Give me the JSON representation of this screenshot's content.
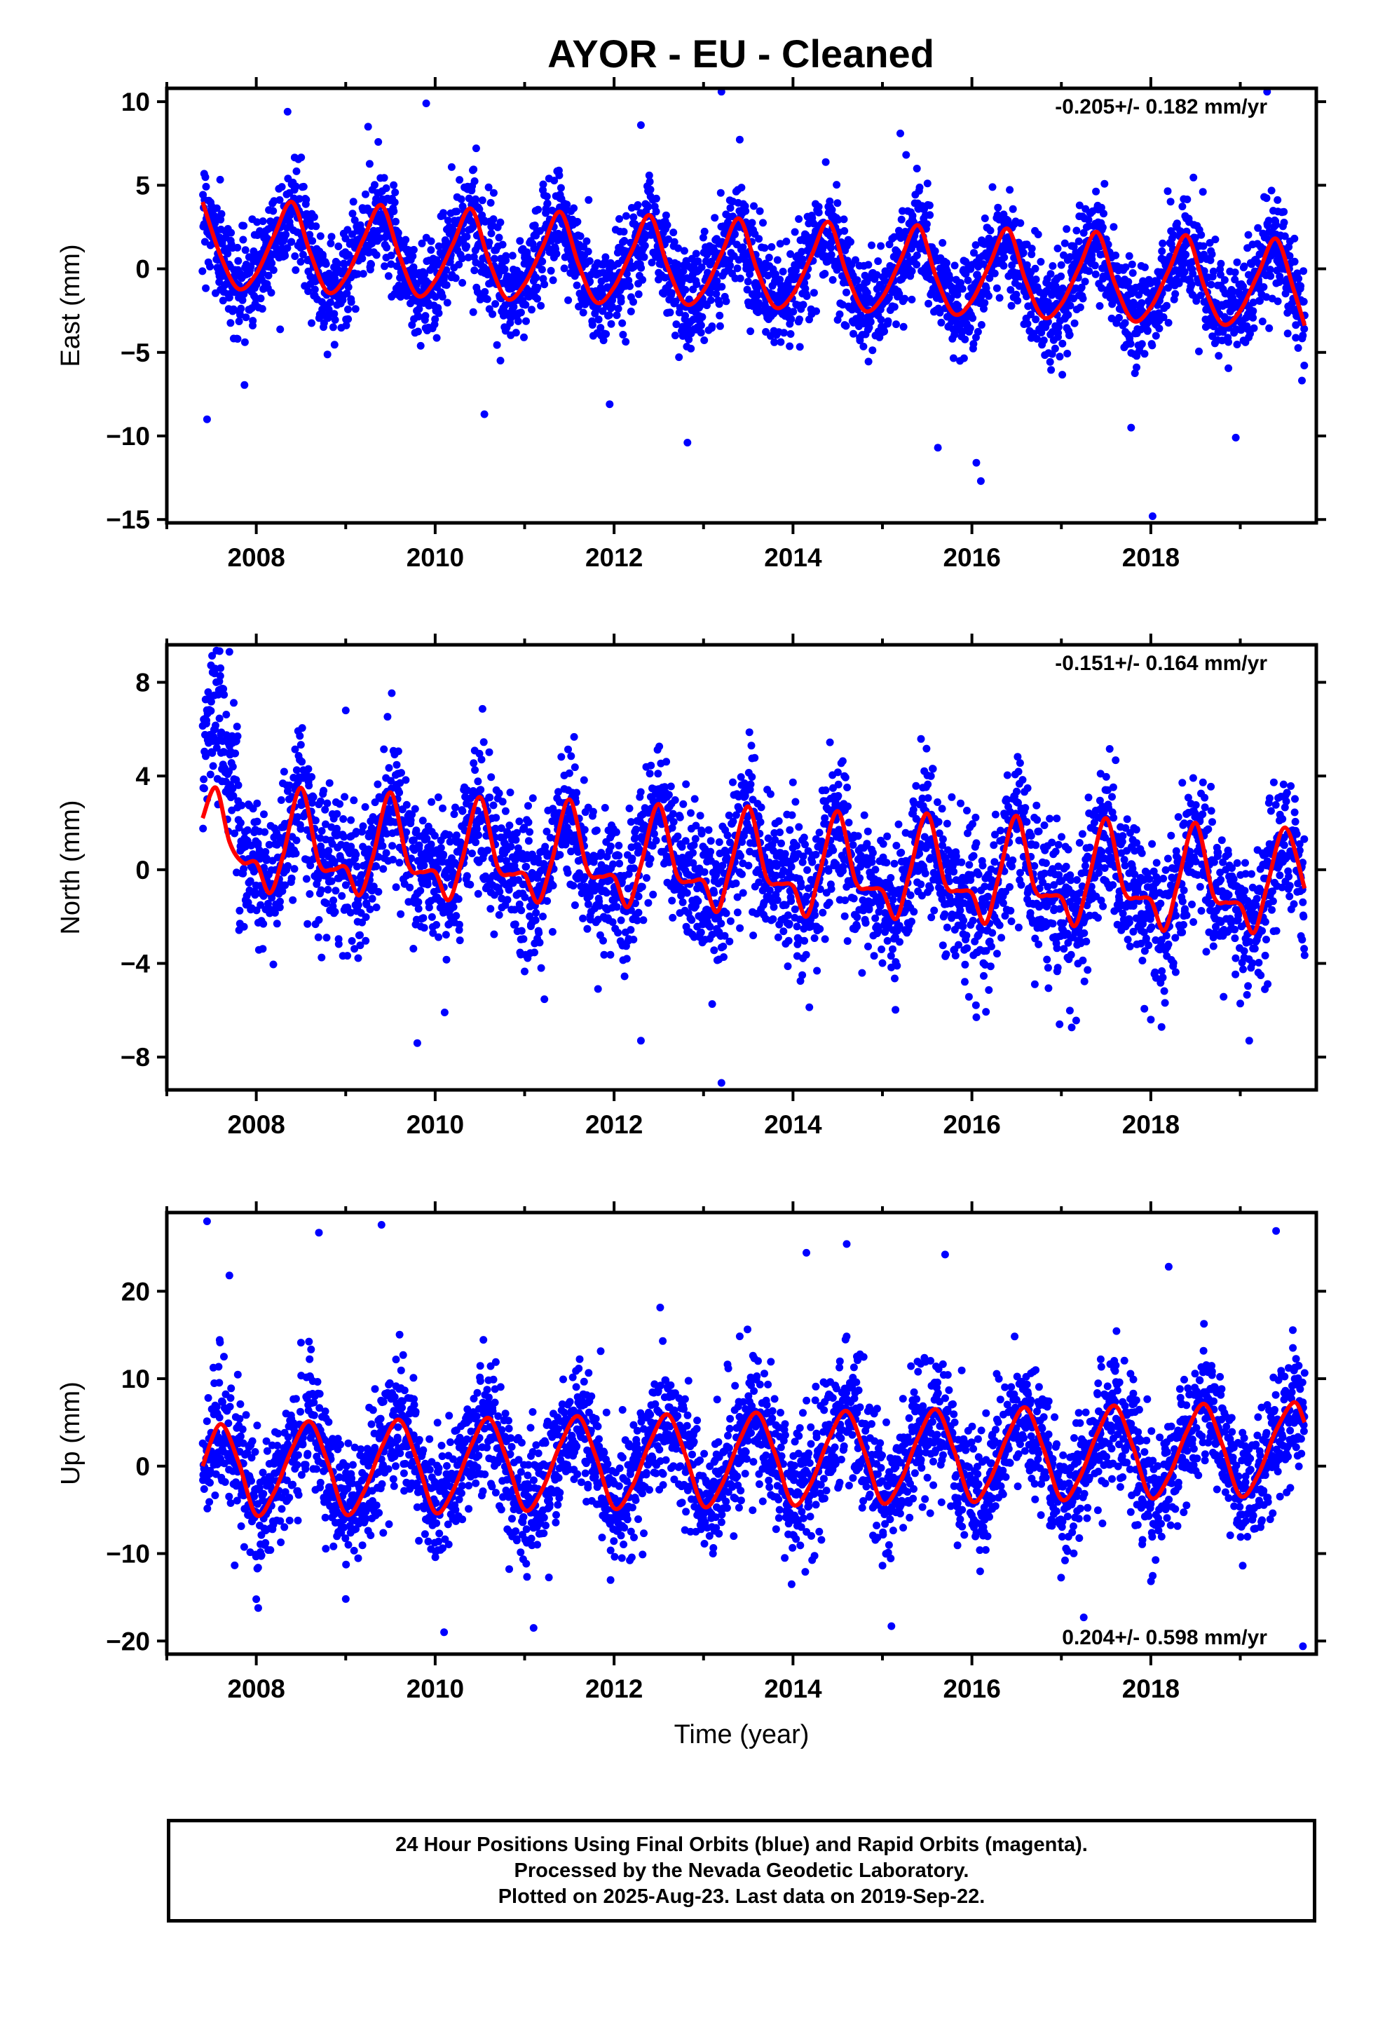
{
  "title": "AYOR  - EU - Cleaned",
  "footer": {
    "line1": "24 Hour Positions Using Final Orbits (blue) and Rapid Orbits (magenta).",
    "line2": "Processed by the Nevada Geodetic Laboratory.",
    "line3": "Plotted on 2025-Aug-23. Last data on 2019-Sep-22."
  },
  "colors": {
    "data_points": "#0000ff",
    "model_fit": "#ff0000",
    "frame": "#000000"
  },
  "chart_data": [
    {
      "type": "scatter",
      "ylabel": "East (mm)",
      "xlabel": "",
      "rate": "-0.205+/- 0.182 mm/yr",
      "xlim": [
        2007.0,
        2019.85
      ],
      "ylim": [
        -15.2,
        10.8
      ],
      "xticks": [
        2008,
        2010,
        2012,
        2014,
        2016,
        2018
      ],
      "yticks": [
        -15,
        -10,
        -5,
        0,
        5,
        10
      ],
      "ytick_labels": [
        "−15",
        "−10",
        "−5",
        "0",
        "5",
        "10"
      ],
      "points_series": {
        "name": "Final Orbits (blue)",
        "start": 2007.4,
        "end": 2019.72
      },
      "model": {
        "name": "fit",
        "t": [
          2007.4,
          2007.6,
          2007.8,
          2008.0,
          2008.2,
          2008.4,
          2008.6,
          2008.8,
          2009.0,
          2009.2,
          2009.4,
          2009.6,
          2009.8,
          2010.0,
          2010.2,
          2010.4,
          2010.6,
          2010.8,
          2011.0,
          2011.2,
          2011.4,
          2011.6,
          2011.8,
          2012.0,
          2012.2,
          2012.4,
          2012.6,
          2012.8,
          2013.0,
          2013.2,
          2013.4,
          2013.6,
          2013.8,
          2014.0,
          2014.2,
          2014.4,
          2014.6,
          2014.8,
          2015.0,
          2015.2,
          2015.4,
          2015.6,
          2015.8,
          2016.0,
          2016.2,
          2016.4,
          2016.6,
          2016.8,
          2017.0,
          2017.2,
          2017.4,
          2017.6,
          2017.8,
          2018.0,
          2018.2,
          2018.4,
          2018.6,
          2018.8,
          2019.0,
          2019.2,
          2019.4,
          2019.6,
          2019.72
        ],
        "y": [
          4.0,
          0.8,
          -1.2,
          -0.3,
          2.0,
          4.0,
          1.0,
          -1.4,
          -0.5,
          1.8,
          3.8,
          0.8,
          -1.6,
          -0.7,
          1.5,
          3.6,
          0.5,
          -1.8,
          -0.9,
          1.3,
          3.4,
          0.3,
          -2.0,
          -1.1,
          1.1,
          3.2,
          0.1,
          -2.1,
          -1.3,
          0.9,
          3.0,
          -0.1,
          -2.3,
          -1.5,
          0.7,
          2.8,
          -0.3,
          -2.5,
          -1.7,
          0.5,
          2.6,
          -0.5,
          -2.7,
          -1.9,
          0.3,
          2.4,
          -0.7,
          -2.9,
          -2.1,
          0.1,
          2.2,
          -0.9,
          -3.1,
          -2.3,
          -0.1,
          2.0,
          -1.1,
          -3.3,
          -2.5,
          -0.3,
          1.8,
          -1.3,
          -3.4
        ]
      },
      "outliers": [
        [
          2007.45,
          -9.0
        ],
        [
          2008.35,
          9.4
        ],
        [
          2009.25,
          8.5
        ],
        [
          2009.9,
          9.9
        ],
        [
          2010.55,
          -8.7
        ],
        [
          2011.95,
          -8.1
        ],
        [
          2012.3,
          8.6
        ],
        [
          2012.82,
          -10.4
        ],
        [
          2013.2,
          10.6
        ],
        [
          2015.2,
          8.1
        ],
        [
          2015.62,
          -10.7
        ],
        [
          2016.05,
          -11.6
        ],
        [
          2016.1,
          -12.7
        ],
        [
          2017.78,
          -9.5
        ],
        [
          2018.02,
          -14.8
        ],
        [
          2018.95,
          -10.1
        ],
        [
          2019.3,
          10.6
        ]
      ]
    },
    {
      "type": "scatter",
      "ylabel": "North (mm)",
      "xlabel": "",
      "rate": "-0.151+/- 0.164 mm/yr",
      "xlim": [
        2007.0,
        2019.85
      ],
      "ylim": [
        -9.4,
        9.6
      ],
      "xticks": [
        2008,
        2010,
        2012,
        2014,
        2016,
        2018
      ],
      "yticks": [
        -8,
        -4,
        0,
        4,
        8
      ],
      "ytick_labels": [
        "−8",
        "−4",
        "0",
        "4",
        "8"
      ],
      "points_series": {
        "name": "Final Orbits (blue)",
        "start": 2007.4,
        "end": 2019.72
      },
      "model": {
        "name": "fit",
        "t": [
          2007.4,
          2007.55,
          2007.7,
          2007.85,
          2008.0,
          2008.15,
          2008.3,
          2008.5,
          2008.7,
          2008.85,
          2009.0,
          2009.15,
          2009.3,
          2009.5,
          2009.7,
          2009.85,
          2010.0,
          2010.15,
          2010.3,
          2010.5,
          2010.7,
          2010.85,
          2011.0,
          2011.15,
          2011.3,
          2011.5,
          2011.7,
          2011.85,
          2012.0,
          2012.15,
          2012.3,
          2012.5,
          2012.7,
          2012.85,
          2013.0,
          2013.15,
          2013.3,
          2013.5,
          2013.7,
          2013.85,
          2014.0,
          2014.15,
          2014.3,
          2014.5,
          2014.7,
          2014.85,
          2015.0,
          2015.15,
          2015.3,
          2015.5,
          2015.7,
          2015.85,
          2016.0,
          2016.15,
          2016.3,
          2016.5,
          2016.7,
          2016.85,
          2017.0,
          2017.15,
          2017.3,
          2017.5,
          2017.7,
          2017.85,
          2018.0,
          2018.15,
          2018.3,
          2018.5,
          2018.7,
          2018.85,
          2019.0,
          2019.15,
          2019.3,
          2019.5,
          2019.72
        ],
        "y": [
          2.2,
          3.5,
          1.2,
          0.3,
          0.3,
          -1.0,
          0.6,
          3.5,
          0.3,
          0.0,
          0.1,
          -1.1,
          0.5,
          3.3,
          0.2,
          -0.1,
          -0.1,
          -1.3,
          0.4,
          3.1,
          0.1,
          -0.2,
          -0.2,
          -1.4,
          0.3,
          3.0,
          0.0,
          -0.3,
          -0.3,
          -1.6,
          0.2,
          2.8,
          -0.2,
          -0.5,
          -0.5,
          -1.8,
          0.1,
          2.7,
          -0.3,
          -0.6,
          -0.7,
          -2.0,
          -0.1,
          2.5,
          -0.5,
          -0.8,
          -0.9,
          -2.1,
          -0.2,
          2.4,
          -0.6,
          -0.9,
          -1.0,
          -2.3,
          -0.3,
          2.3,
          -0.8,
          -1.1,
          -1.2,
          -2.4,
          -0.5,
          2.2,
          -0.9,
          -1.2,
          -1.3,
          -2.6,
          -0.6,
          2.0,
          -1.1,
          -1.4,
          -1.5,
          -2.7,
          -0.7,
          1.8,
          -0.8
        ]
      },
      "outliers": [
        [
          2007.6,
          8.6
        ],
        [
          2007.7,
          9.3
        ],
        [
          2009.0,
          6.8
        ],
        [
          2009.8,
          -7.4
        ],
        [
          2012.3,
          -7.3
        ],
        [
          2013.2,
          -9.1
        ],
        [
          2016.05,
          -6.3
        ],
        [
          2016.98,
          -6.6
        ],
        [
          2018.0,
          -6.4
        ],
        [
          2019.1,
          -7.3
        ]
      ]
    },
    {
      "type": "scatter",
      "ylabel": "Up (mm)",
      "xlabel": "Time (year)",
      "rate": "0.204+/- 0.598 mm/yr",
      "xlim": [
        2007.0,
        2019.85
      ],
      "ylim": [
        -21.5,
        29.0
      ],
      "xticks": [
        2008,
        2010,
        2012,
        2014,
        2016,
        2018
      ],
      "yticks": [
        -20,
        -10,
        0,
        10,
        20
      ],
      "ytick_labels": [
        "−20",
        "−10",
        "0",
        "10",
        "20"
      ],
      "points_series": {
        "name": "Final Orbits (blue)",
        "start": 2007.4,
        "end": 2019.72
      },
      "model": {
        "name": "fit",
        "t": [
          2007.4,
          2007.6,
          2007.8,
          2008.0,
          2008.2,
          2008.4,
          2008.6,
          2008.8,
          2009.0,
          2009.2,
          2009.4,
          2009.6,
          2009.8,
          2010.0,
          2010.2,
          2010.4,
          2010.6,
          2010.8,
          2011.0,
          2011.2,
          2011.4,
          2011.6,
          2011.8,
          2012.0,
          2012.2,
          2012.4,
          2012.6,
          2012.8,
          2013.0,
          2013.2,
          2013.4,
          2013.6,
          2013.8,
          2014.0,
          2014.2,
          2014.4,
          2014.6,
          2014.8,
          2015.0,
          2015.2,
          2015.4,
          2015.6,
          2015.8,
          2016.0,
          2016.2,
          2016.4,
          2016.6,
          2016.8,
          2017.0,
          2017.2,
          2017.4,
          2017.6,
          2017.8,
          2018.0,
          2018.2,
          2018.4,
          2018.6,
          2018.8,
          2019.0,
          2019.2,
          2019.4,
          2019.6,
          2019.72
        ],
        "y": [
          0.0,
          4.8,
          0.5,
          -5.6,
          -3.0,
          2.0,
          5.1,
          0.4,
          -5.5,
          -3.0,
          2.1,
          5.3,
          0.6,
          -5.3,
          -2.8,
          2.3,
          5.5,
          0.8,
          -5.0,
          -2.6,
          2.5,
          5.7,
          1.0,
          -4.8,
          -2.4,
          2.7,
          5.9,
          1.2,
          -4.6,
          -2.2,
          2.9,
          6.1,
          1.4,
          -4.4,
          -2.0,
          3.1,
          6.3,
          1.6,
          -4.2,
          -1.8,
          3.3,
          6.5,
          1.8,
          -4.0,
          -1.6,
          3.5,
          6.7,
          2.0,
          -3.8,
          -1.4,
          3.7,
          6.9,
          2.2,
          -3.6,
          -1.2,
          3.9,
          7.1,
          2.4,
          -3.4,
          -1.0,
          4.1,
          7.3,
          5.0
        ]
      },
      "outliers": [
        [
          2007.45,
          28.0
        ],
        [
          2007.7,
          21.8
        ],
        [
          2008.7,
          26.7
        ],
        [
          2009.4,
          27.6
        ],
        [
          2009.0,
          -15.2
        ],
        [
          2010.1,
          -19.0
        ],
        [
          2011.1,
          -18.5
        ],
        [
          2014.15,
          24.4
        ],
        [
          2014.6,
          25.4
        ],
        [
          2015.7,
          24.2
        ],
        [
          2018.2,
          22.8
        ],
        [
          2019.4,
          26.9
        ],
        [
          2019.7,
          -20.6
        ],
        [
          2017.25,
          -17.3
        ],
        [
          2015.1,
          -18.3
        ]
      ]
    }
  ]
}
